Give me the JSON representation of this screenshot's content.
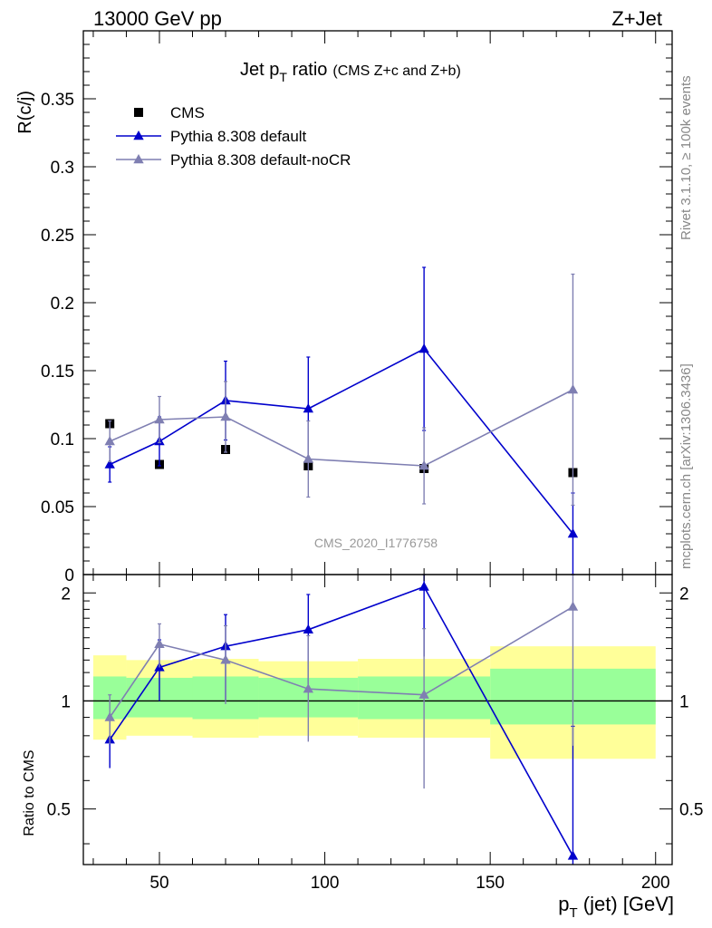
{
  "header": {
    "left_label": "13000 GeV pp",
    "right_label": "Z+Jet"
  },
  "side_labels": {
    "rivet": "Rivet 3.1.10, ≥ 100k events",
    "mcplots": "mcplots.cern.ch [arXiv:1306.3436]"
  },
  "colors": {
    "cms": "#000000",
    "pythia_default": "#0000cc",
    "pythia_nocr": "#7f7fb2",
    "band_inner": "#99ff99",
    "band_outer": "#ffff99",
    "watermark": "#999999"
  },
  "chart_data": [
    {
      "type": "line",
      "title_main": "Jet p",
      "title_sub": "T",
      "title_rest": " ratio",
      "title_small": "(CMS  Z+c and Z+b)",
      "analysis_id": "CMS_2020_I1776758",
      "ylabel": "R(c/j)",
      "xlim": [
        27,
        205
      ],
      "ylim": [
        0,
        0.4
      ],
      "yticks": [
        0,
        0.05,
        0.1,
        0.15,
        0.2,
        0.25,
        0.3,
        0.35
      ],
      "ytick_labels": [
        "0",
        "0.05",
        "0.1",
        "0.15",
        "0.2",
        "0.25",
        "0.3",
        "0.35"
      ],
      "legend_position": "top-left",
      "series": [
        {
          "name": "CMS",
          "marker": "square",
          "x": [
            35,
            50,
            70,
            95,
            130,
            175
          ],
          "y": [
            0.111,
            0.081,
            0.092,
            0.08,
            0.078,
            0.075
          ]
        },
        {
          "name": "Pythia 8.308 default",
          "marker": "triangle",
          "x": [
            35,
            50,
            70,
            95,
            130,
            175
          ],
          "y": [
            0.081,
            0.098,
            0.128,
            0.122,
            0.166,
            0.03
          ],
          "yerr": [
            0.013,
            0.018,
            0.029,
            0.038,
            0.06,
            0.03
          ]
        },
        {
          "name": "Pythia 8.308 default-noCR",
          "marker": "triangle",
          "x": [
            35,
            50,
            70,
            95,
            130,
            175
          ],
          "y": [
            0.098,
            0.114,
            0.116,
            0.085,
            0.08,
            0.136
          ],
          "yerr": [
            0.015,
            0.017,
            0.026,
            0.028,
            0.028,
            0.085
          ]
        }
      ]
    },
    {
      "type": "line",
      "ylabel": "Ratio to CMS",
      "xlabel_main": "p",
      "xlabel_sub": "T",
      "xlabel_rest": " (jet) [GeV]",
      "xlim": [
        27,
        205
      ],
      "ylim": [
        0.35,
        2.25
      ],
      "log_y": true,
      "reference_line": 1.0,
      "yticks": [
        0.5,
        1,
        2
      ],
      "ytick_labels": [
        "0.5",
        "1",
        "2"
      ],
      "xticks": [
        50,
        100,
        150,
        200
      ],
      "xtick_labels": [
        "50",
        "100",
        "150",
        "200"
      ],
      "bands": [
        {
          "x0": 30,
          "x1": 40,
          "inner": [
            0.89,
            1.17
          ],
          "outer": [
            0.78,
            1.34
          ]
        },
        {
          "x0": 40,
          "x1": 60,
          "inner": [
            0.9,
            1.16
          ],
          "outer": [
            0.8,
            1.3
          ]
        },
        {
          "x0": 60,
          "x1": 80,
          "inner": [
            0.89,
            1.17
          ],
          "outer": [
            0.79,
            1.31
          ]
        },
        {
          "x0": 80,
          "x1": 110,
          "inner": [
            0.9,
            1.16
          ],
          "outer": [
            0.8,
            1.29
          ]
        },
        {
          "x0": 110,
          "x1": 150,
          "inner": [
            0.89,
            1.17
          ],
          "outer": [
            0.79,
            1.31
          ]
        },
        {
          "x0": 150,
          "x1": 200,
          "inner": [
            0.86,
            1.23
          ],
          "outer": [
            0.69,
            1.42
          ]
        }
      ],
      "series": [
        {
          "name": "Pythia 8.308 default",
          "x": [
            35,
            50,
            70,
            95,
            130,
            175
          ],
          "y": [
            0.78,
            1.24,
            1.42,
            1.58,
            2.08,
            0.37
          ],
          "yerr_low": [
            0.13,
            0.24,
            0.42,
            0.5,
            0.75,
            0.37
          ],
          "yerr_high": [
            0.13,
            0.24,
            0.32,
            0.4,
            0.6,
            0.48
          ]
        },
        {
          "name": "Pythia 8.308 default-noCR",
          "x": [
            35,
            50,
            70,
            95,
            130,
            175
          ],
          "y": [
            0.9,
            1.44,
            1.3,
            1.08,
            1.04,
            1.83
          ],
          "yerr_low": [
            0.14,
            0.2,
            0.32,
            0.31,
            0.47,
            1.08
          ],
          "yerr_high": [
            0.14,
            0.2,
            0.32,
            0.44,
            0.55,
            1.15
          ]
        }
      ]
    }
  ]
}
